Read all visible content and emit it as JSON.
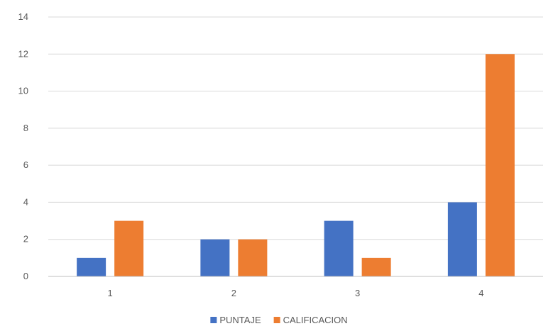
{
  "chart_data": {
    "type": "bar",
    "categories": [
      "1",
      "2",
      "3",
      "4"
    ],
    "series": [
      {
        "name": "PUNTAJE",
        "values": [
          1,
          2,
          3,
          4
        ],
        "color": "#4472c4"
      },
      {
        "name": "CALIFICACION",
        "values": [
          3,
          2,
          1,
          12
        ],
        "color": "#ed7d31"
      }
    ],
    "ylim": [
      0,
      14
    ],
    "yticks": [
      0,
      2,
      4,
      6,
      8,
      10,
      12,
      14
    ],
    "grid": true,
    "legend_position": "bottom"
  }
}
